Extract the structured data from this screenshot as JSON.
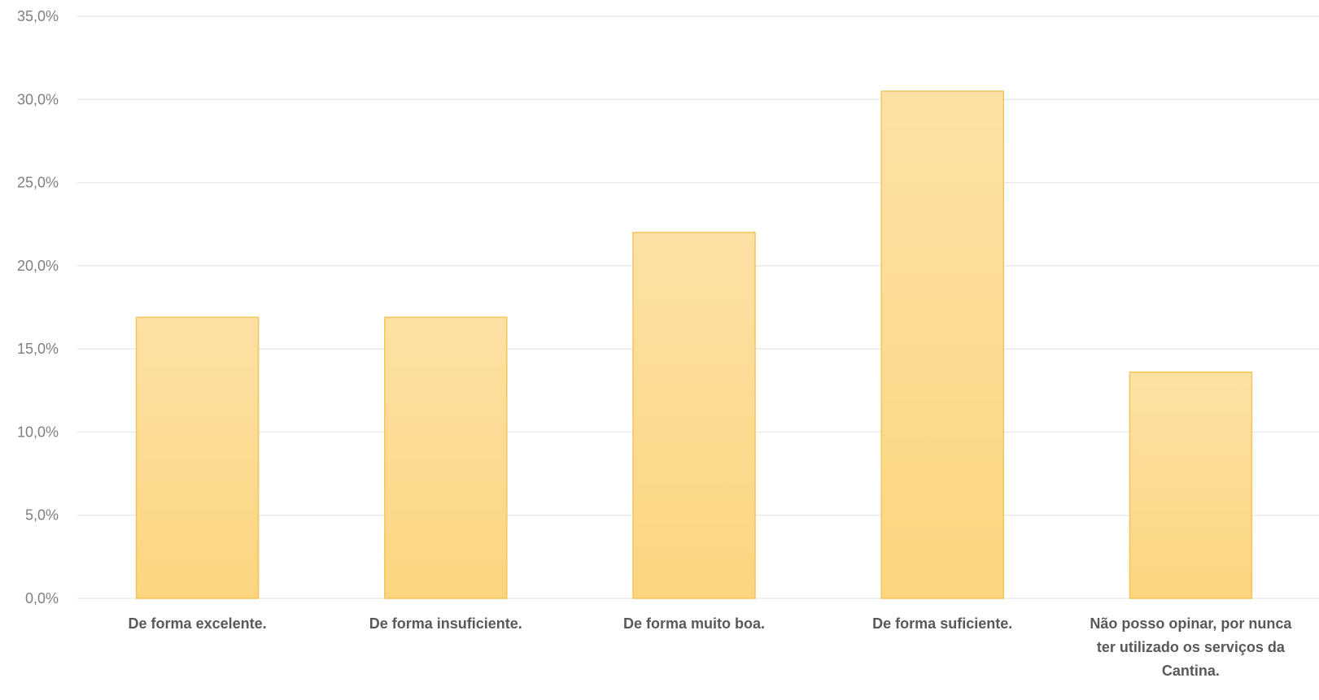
{
  "chart_data": {
    "type": "bar",
    "categories": [
      "De forma excelente.",
      "De forma insuficiente.",
      "De forma muito boa.",
      "De forma suficiente.",
      "Não posso opinar, por nunca ter utilizado os serviços da Cantina."
    ],
    "category_label_lines": [
      [
        "De forma excelente."
      ],
      [
        "De forma insuficiente."
      ],
      [
        "De forma muito boa."
      ],
      [
        "De forma suficiente."
      ],
      [
        "Não posso opinar, por nunca",
        "ter utilizado os serviços da",
        "Cantina."
      ]
    ],
    "values": [
      16.9,
      16.9,
      22.0,
      30.5,
      13.6
    ],
    "ylim": [
      0,
      35
    ],
    "yticks": [
      0,
      5,
      10,
      15,
      20,
      25,
      30,
      35
    ],
    "ytick_labels": [
      "0,0%",
      "5,0%",
      "10,0%",
      "15,0%",
      "20,0%",
      "25,0%",
      "30,0%",
      "35,0%"
    ],
    "grid": true,
    "legend": "none",
    "title": "",
    "xlabel": "",
    "ylabel": "",
    "colors": {
      "bar_top": "#fde1a4",
      "bar_bottom": "#fcd57f",
      "bar_border": "#f3c55a",
      "grid": "#e6e6e6",
      "tick_text": "#7f7f7f",
      "category_text": "#595959"
    }
  }
}
